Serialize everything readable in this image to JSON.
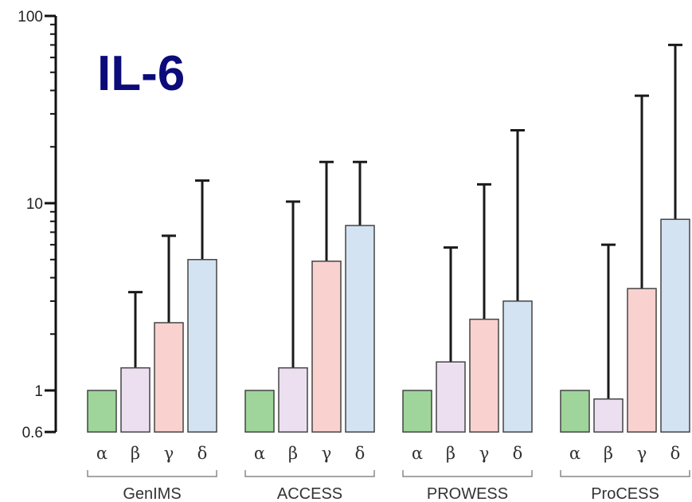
{
  "chart_data": {
    "type": "bar",
    "title": "IL-6",
    "y_scale": "log",
    "ylim": [
      0.6,
      100
    ],
    "y_ticks": [
      "0.6",
      "1",
      "10",
      "100"
    ],
    "categories": [
      "α",
      "β",
      "γ",
      "δ"
    ],
    "category_colors": [
      "#9fd59a",
      "#ece0f0",
      "#f9d2cf",
      "#d3e3f2"
    ],
    "groups": [
      {
        "name": "GenIMS",
        "values": [
          1,
          1.32,
          2.3,
          5.0
        ],
        "error_upper": [
          null,
          3.35,
          6.7,
          13.2
        ]
      },
      {
        "name": "ACCESS",
        "values": [
          1,
          1.32,
          4.9,
          7.6
        ],
        "error_upper": [
          null,
          10.2,
          16.6,
          16.6
        ]
      },
      {
        "name": "PROWESS",
        "values": [
          1,
          1.42,
          2.4,
          3.0
        ],
        "error_upper": [
          null,
          5.8,
          12.6,
          24.5
        ]
      },
      {
        "name": "ProCESS",
        "values": [
          1,
          0.9,
          3.5,
          8.2
        ],
        "error_upper": [
          null,
          6.0,
          37.5,
          70.0
        ]
      }
    ],
    "grid": false,
    "legend": "none"
  }
}
